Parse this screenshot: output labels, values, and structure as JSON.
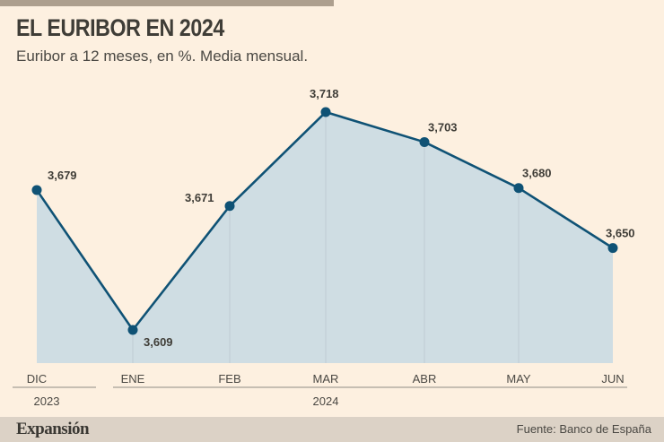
{
  "header": {
    "title": "EL EURIBOR EN 2024",
    "subtitle": "Euribor a 12 meses, en %. Media mensual."
  },
  "footer": {
    "brand": "Expansión",
    "source": "Fuente: Banco de España"
  },
  "colors": {
    "background": "#fdf0e0",
    "line": "#0f5275",
    "area": "#cfdde3",
    "topbar": "#ad9f8e",
    "footer": "#dcd2c6"
  },
  "chart_data": {
    "type": "area",
    "title": "EL EURIBOR EN 2024",
    "subtitle": "Euribor a 12 meses, en %. Media mensual.",
    "xlabel": "",
    "ylabel": "",
    "categories": [
      "DIC",
      "ENE",
      "FEB",
      "MAR",
      "ABR",
      "MAY",
      "JUN"
    ],
    "year_groups": [
      {
        "label": "2023",
        "categories": [
          "DIC"
        ]
      },
      {
        "label": "2024",
        "categories": [
          "ENE",
          "FEB",
          "MAR",
          "ABR",
          "MAY",
          "JUN"
        ]
      }
    ],
    "series": [
      {
        "name": "Euribor a 12 meses",
        "values": [
          3.679,
          3.609,
          3.671,
          3.718,
          3.703,
          3.68,
          3.65
        ],
        "labels": [
          "3,679",
          "3,609",
          "3,671",
          "3,718",
          "3,703",
          "3,680",
          "3,650"
        ]
      }
    ],
    "ylim": [
      3.54,
      3.718
    ],
    "grid": false,
    "legend": "none"
  }
}
